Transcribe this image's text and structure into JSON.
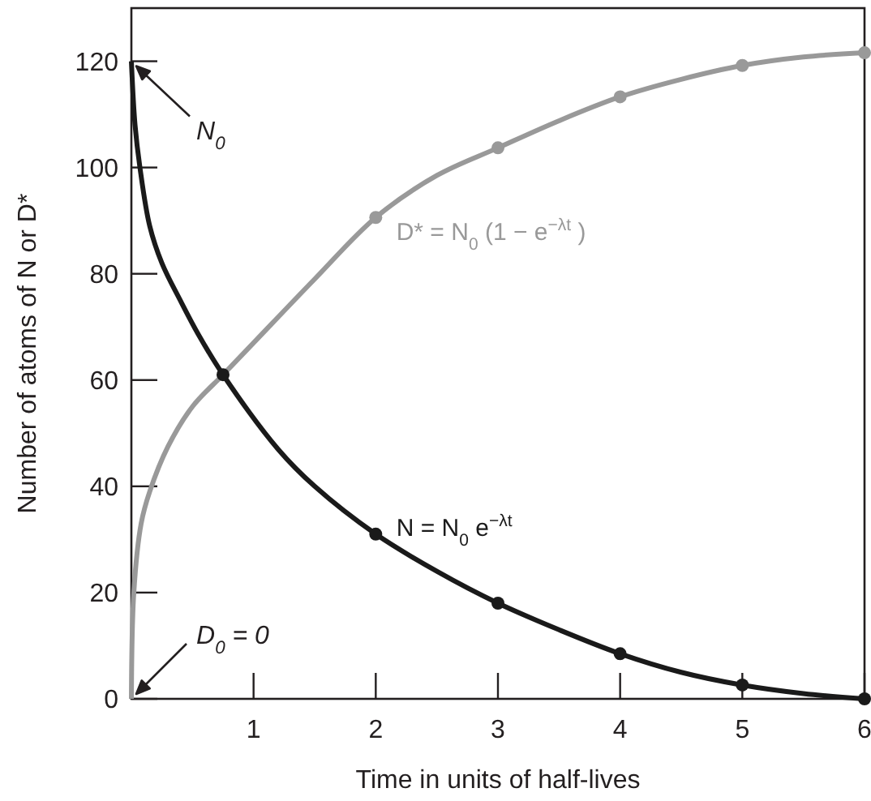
{
  "chart_data": {
    "type": "line",
    "xlabel": "Time in units of half-lives",
    "ylabel": "Number of atoms of N or D*",
    "xlim": [
      0,
      6
    ],
    "ylim": [
      0,
      130
    ],
    "xticks": [
      1,
      2,
      3,
      4,
      5,
      6
    ],
    "yticks": [
      0,
      20,
      40,
      60,
      80,
      100,
      120
    ],
    "grid": false,
    "series": [
      {
        "name": "N = N$_{0}$ e$^{−λt}$",
        "color": "#1a1a1a",
        "marker": "none",
        "x": [
          0,
          0.03,
          0.07,
          0.15,
          0.25,
          0.4,
          0.55,
          0.75,
          1.2,
          1.5,
          2,
          2.5,
          3,
          3.5,
          4,
          4.5,
          5,
          5.5,
          6
        ],
        "values": [
          120,
          108,
          100,
          89,
          82,
          75,
          68.5,
          61,
          47,
          40,
          31,
          24,
          18,
          13,
          8.5,
          5,
          2.6,
          1,
          0
        ]
      },
      {
        "name": "D* = N$_{0}$(1 − e$^{−λt}$)",
        "color": "#999999",
        "marker": "none",
        "x": [
          0,
          0.02,
          0.08,
          0.15,
          0.3,
          0.5,
          0.75,
          1,
          1.5,
          2,
          2.5,
          3,
          3.5,
          4,
          4.5,
          5,
          5.5,
          6
        ],
        "values": [
          0,
          20,
          33,
          39,
          47.5,
          55,
          61,
          67,
          79,
          90.6,
          98.5,
          103.7,
          108.8,
          113.3,
          116.6,
          119.2,
          120.8,
          121.6
        ]
      },
      {
        "type": "scatter",
        "color": "#999999",
        "marker": "circle",
        "x": [
          2,
          3,
          4,
          5,
          6
        ],
        "values": [
          90.6,
          103.7,
          113.3,
          119.2,
          121.6
        ]
      },
      {
        "type": "scatter",
        "color": "#1a1a1a",
        "marker": "circle",
        "x": [
          0.75,
          2,
          3,
          4,
          5,
          6
        ],
        "values": [
          61,
          31,
          18,
          8.5,
          2.6,
          0
        ]
      }
    ],
    "annotations": [
      {
        "text": "N$_{0}$",
        "x": 0,
        "y": 120
      },
      {
        "text": "D$_{0}$ = 0",
        "x": 0,
        "y": 0
      }
    ]
  }
}
